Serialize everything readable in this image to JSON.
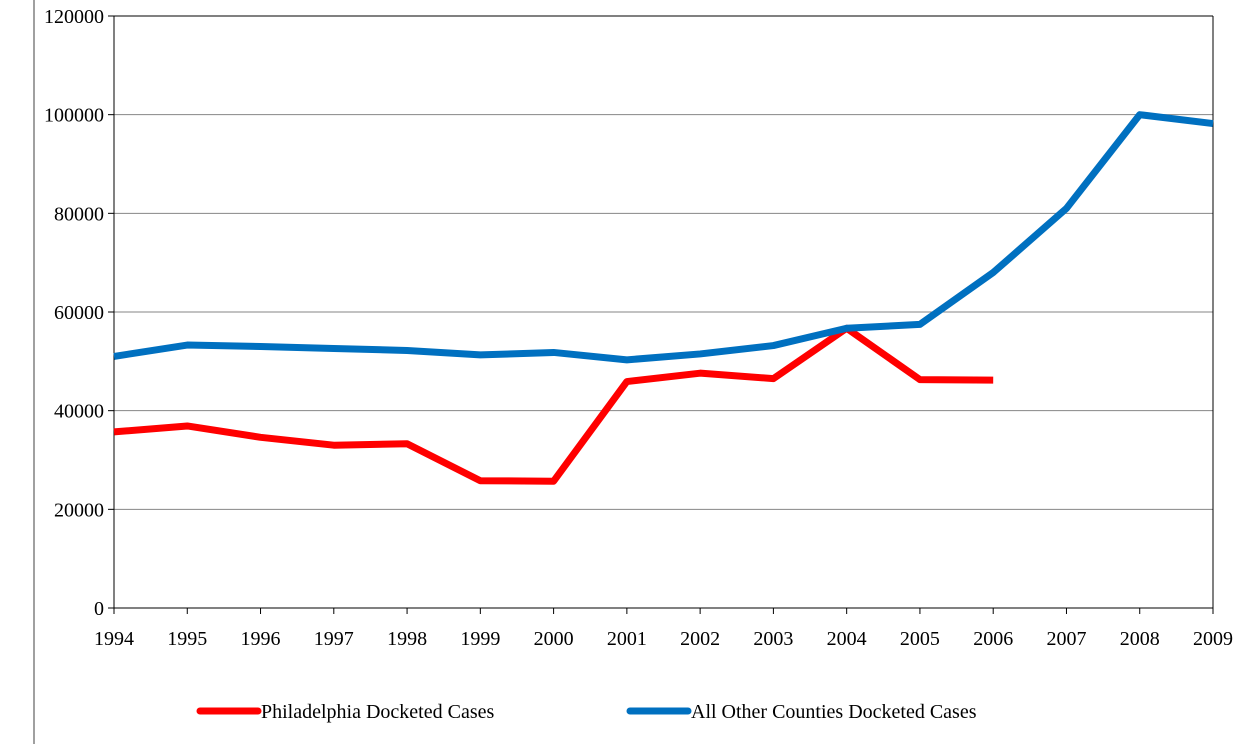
{
  "chart_data": {
    "type": "line",
    "title": "",
    "xlabel": "",
    "ylabel": "",
    "x": [
      "1994",
      "1995",
      "1996",
      "1997",
      "1998",
      "1999",
      "2000",
      "2001",
      "2002",
      "2003",
      "2004",
      "2005",
      "2006",
      "2007",
      "2008",
      "2009"
    ],
    "ylim": [
      0,
      120000
    ],
    "yticks": [
      0,
      20000,
      40000,
      60000,
      80000,
      100000,
      120000
    ],
    "grid": true,
    "legend_position": "bottom",
    "series": [
      {
        "name": "Philadelphia Docketed Cases",
        "color": "#ff0000",
        "values": [
          35700,
          36900,
          34600,
          33000,
          33300,
          25800,
          25700,
          45900,
          47600,
          46500,
          56700,
          46300,
          46200,
          null,
          null,
          null
        ]
      },
      {
        "name": "All Other Counties Docketed Cases",
        "color": "#0070c0",
        "values": [
          51000,
          53300,
          53000,
          52600,
          52200,
          51300,
          51800,
          50300,
          51500,
          53200,
          56700,
          57500,
          68000,
          81000,
          100000,
          98200
        ]
      }
    ]
  }
}
